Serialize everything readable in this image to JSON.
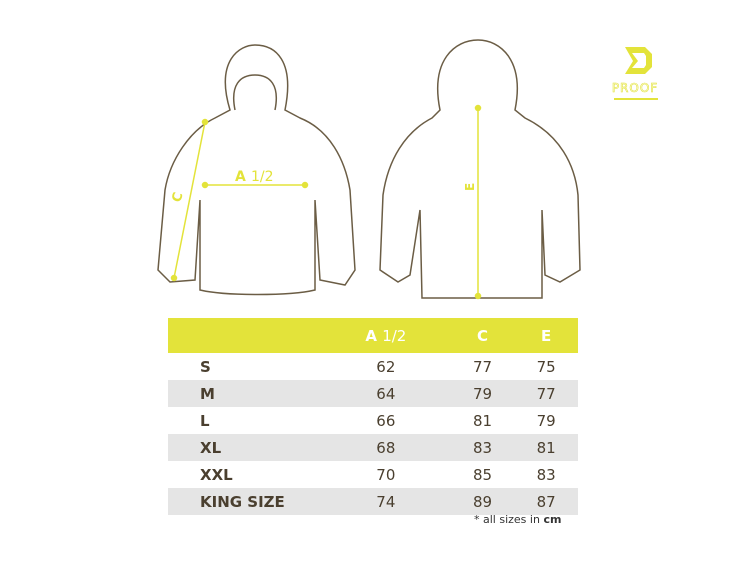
{
  "logo": {
    "text": "DRAGON PROOF",
    "color": "#e3e33a"
  },
  "diagram": {
    "front_labels": {
      "a": "A",
      "a_half": "1/2",
      "c": "C"
    },
    "back_labels": {
      "e": "E"
    },
    "accent_color": "#e3e33a",
    "outline_color": "#6b5d45"
  },
  "table": {
    "headers": {
      "size": "",
      "a": "A",
      "a_half": "1/2",
      "c": "C",
      "e": "E"
    },
    "rows": [
      {
        "size": "S",
        "a": "62",
        "c": "77",
        "e": "75"
      },
      {
        "size": "M",
        "a": "64",
        "c": "79",
        "e": "77"
      },
      {
        "size": "L",
        "a": "66",
        "c": "81",
        "e": "79"
      },
      {
        "size": "XL",
        "a": "68",
        "c": "83",
        "e": "81"
      },
      {
        "size": "XXL",
        "a": "70",
        "c": "85",
        "e": "83"
      },
      {
        "size": "KING SIZE",
        "a": "74",
        "c": "89",
        "e": "87"
      }
    ],
    "header_color": "#e3e33a"
  },
  "note": {
    "prefix": "* all sizes in",
    "unit": "cm"
  }
}
